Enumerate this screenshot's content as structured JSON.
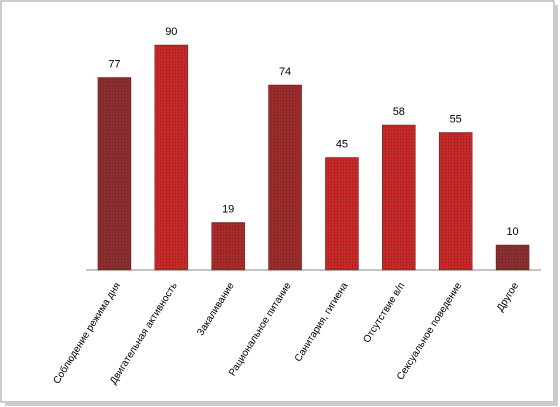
{
  "chart_data": {
    "type": "bar",
    "categories": [
      "Соблюдение режима дня",
      "Двигательная активность",
      "Закаливание",
      "Рациональное питание",
      "Санитария, гигиена",
      "Отсутствие в/п",
      "Сексуальное поведение",
      "Другое"
    ],
    "values": [
      77,
      90,
      19,
      74,
      45,
      58,
      55,
      10
    ],
    "colors": [
      "#8a2f2f",
      "#c42828",
      "#a82b2b",
      "#9a2c2c",
      "#c42828",
      "#c42828",
      "#c42828",
      "#8a2f2f"
    ]
  }
}
